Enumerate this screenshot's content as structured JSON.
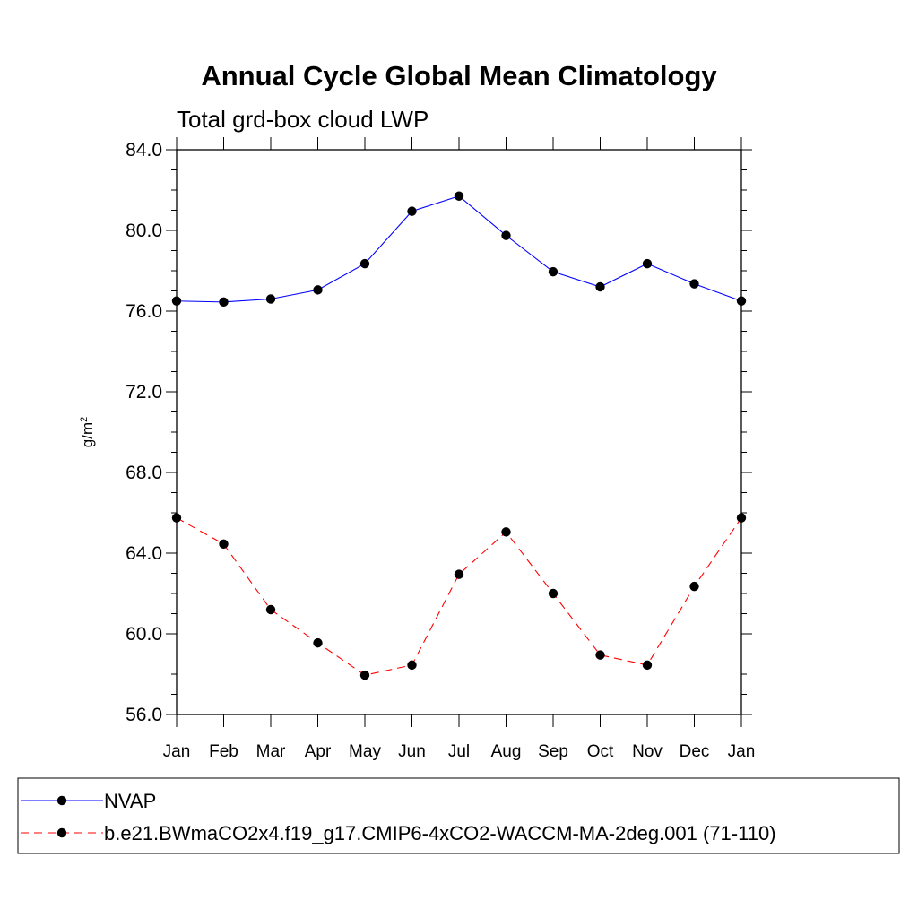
{
  "chart_data": {
    "type": "line",
    "title": "Annual Cycle Global Mean Climatology",
    "subtitle": "Total grd-box cloud LWP",
    "xlabel": "",
    "ylabel_base": "g/m",
    "ylabel_sup": "2",
    "categories": [
      "Jan",
      "Feb",
      "Mar",
      "Apr",
      "May",
      "Jun",
      "Jul",
      "Aug",
      "Sep",
      "Oct",
      "Nov",
      "Dec",
      "Jan"
    ],
    "ylim": [
      56,
      84
    ],
    "yticks": [
      56,
      60,
      64,
      68,
      72,
      76,
      80,
      84
    ],
    "ytick_labels": [
      "56.0",
      "60.0",
      "64.0",
      "68.0",
      "72.0",
      "76.0",
      "80.0",
      "84.0"
    ],
    "grid": false,
    "legend_position": "bottom",
    "series": [
      {
        "name": "NVAP",
        "color": "#0000ff",
        "dash": "solid",
        "values": [
          76.5,
          76.45,
          76.6,
          77.05,
          78.35,
          80.95,
          81.7,
          79.75,
          77.95,
          77.2,
          78.35,
          77.35,
          76.5
        ]
      },
      {
        "name": "b.e21.BWmaCO2x4.f19_g17.CMIP6-4xCO2-WACCM-MA-2deg.001 (71-110)",
        "color": "#ff0000",
        "dash": "dashed",
        "values": [
          65.75,
          64.45,
          61.2,
          59.55,
          57.95,
          58.45,
          62.95,
          65.05,
          62.0,
          58.95,
          58.45,
          62.35,
          65.75
        ]
      }
    ]
  }
}
